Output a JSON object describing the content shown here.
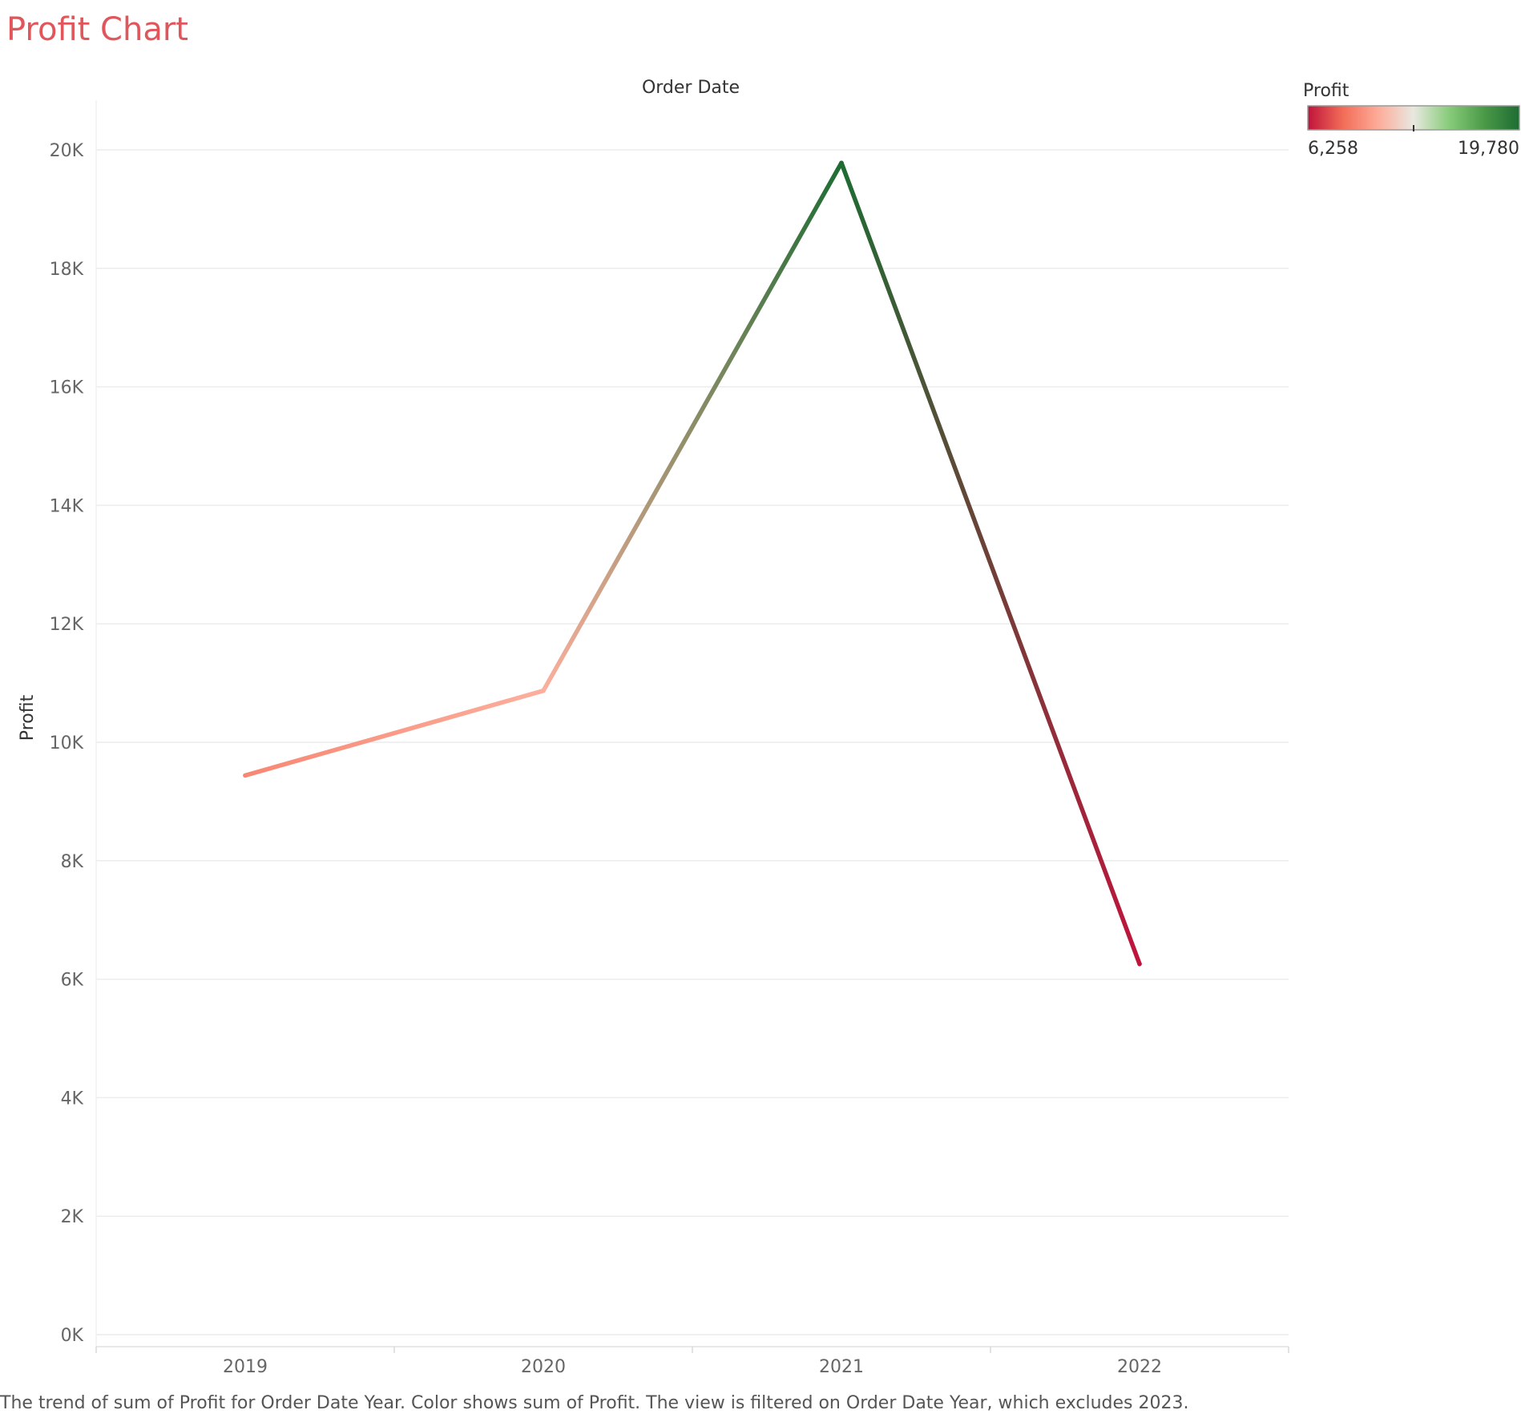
{
  "title": "Profit Chart",
  "caption": "The trend of sum of Profit for Order Date Year.  Color shows sum of Profit. The view is filtered on Order Date Year, which excludes 2023.",
  "chart_data": {
    "type": "line",
    "title": "Profit Chart",
    "x_header": "Order Date",
    "ylabel": "Profit",
    "categories": [
      "2019",
      "2020",
      "2021",
      "2022"
    ],
    "series": [
      {
        "values": [
          9440,
          10870,
          19780,
          6258
        ]
      }
    ],
    "ylim": [
      0,
      20800
    ],
    "yticks": [
      0,
      2000,
      4000,
      6000,
      8000,
      10000,
      12000,
      14000,
      16000,
      18000,
      20000
    ],
    "ytick_labels": [
      "0K",
      "2K",
      "4K",
      "6K",
      "8K",
      "10K",
      "12K",
      "14K",
      "16K",
      "18K",
      "20K"
    ],
    "grid": true,
    "color_legend": {
      "title": "Profit",
      "min_label": "6,258",
      "max_label": "19,780",
      "min": 6258,
      "max": 19780,
      "colors": [
        "#c0143c",
        "#f26d58",
        "#fdac9a",
        "#e8e8e0",
        "#88cc7a",
        "#4a9a48",
        "#1e6c33"
      ]
    }
  }
}
